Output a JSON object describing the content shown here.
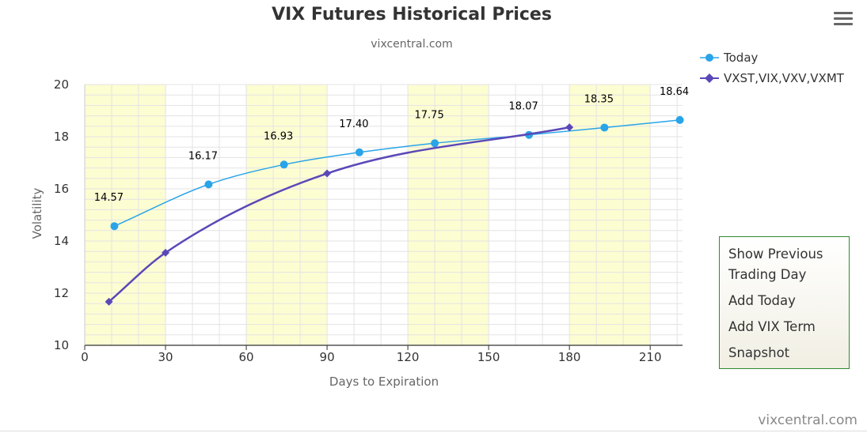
{
  "chart": {
    "title": "VIX Futures Historical Prices",
    "subtitle": "vixcentral.com",
    "credit": "vixcentral.com"
  },
  "legend": {
    "items": [
      {
        "label": "Today",
        "color": "#2aa4e8"
      },
      {
        "label": "VXST,VIX,VXV,VXMT",
        "color": "#5a48b8"
      }
    ]
  },
  "context_menu": {
    "items": [
      "Show Previous Trading Day",
      "Add Today",
      "Add VIX Term",
      "Snapshot"
    ]
  },
  "icons": {
    "menu": "hamburger-menu-icon"
  },
  "colors": {
    "today": "#2aa4e8",
    "term": "#5a48b8",
    "band": "#fdfdd2",
    "grid": "#e3e3e3",
    "menu_border": "#2f8a2f"
  },
  "chart_data": {
    "type": "line",
    "title": "VIX Futures Historical Prices",
    "subtitle": "vixcentral.com",
    "xlabel": "Days to Expiration",
    "ylabel": "Volatility",
    "xlim": [
      0,
      222
    ],
    "ylim": [
      10,
      20
    ],
    "x_ticks": [
      0,
      30,
      60,
      90,
      120,
      150,
      180,
      210
    ],
    "y_ticks": [
      10,
      12,
      14,
      16,
      18,
      20
    ],
    "grid": true,
    "legend_position": "top-right",
    "shaded_bands": [
      [
        0,
        30
      ],
      [
        60,
        90
      ],
      [
        120,
        150
      ],
      [
        180,
        210
      ]
    ],
    "series": [
      {
        "name": "Today",
        "marker": "circle",
        "data_labels": true,
        "x": [
          11,
          46,
          74,
          102,
          130,
          165,
          193,
          221
        ],
        "y": [
          14.57,
          16.17,
          16.93,
          17.4,
          17.75,
          18.07,
          18.35,
          18.64
        ],
        "labels": [
          "14.57",
          "16.17",
          "16.93",
          "17.40",
          "17.75",
          "18.07",
          "18.35",
          "18.64"
        ]
      },
      {
        "name": "VXST,VIX,VXV,VXMT",
        "marker": "diamond",
        "data_labels": false,
        "x": [
          9,
          30,
          90,
          180
        ],
        "y": [
          11.67,
          13.55,
          16.59,
          18.36
        ]
      }
    ]
  }
}
